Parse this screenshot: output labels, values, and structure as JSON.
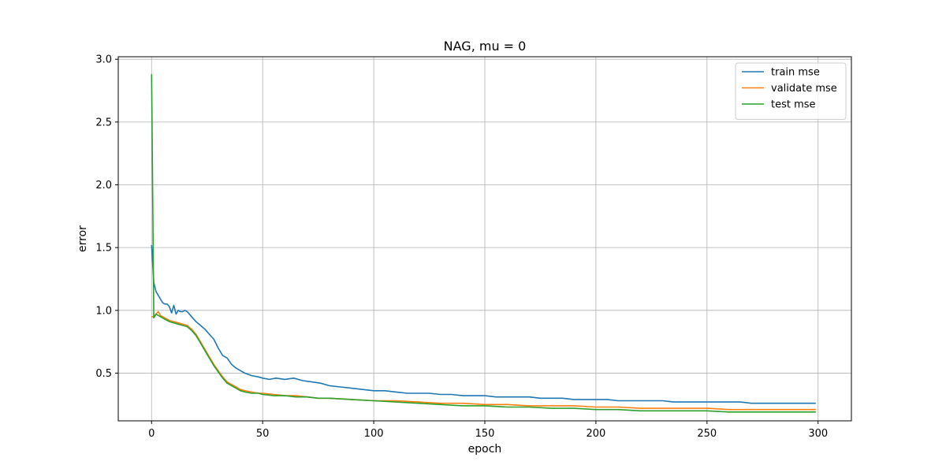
{
  "chart_data": {
    "type": "line",
    "title": "NAG, mu = 0",
    "xlabel": "epoch",
    "ylabel": "error",
    "xlim": [
      -15,
      315
    ],
    "ylim": [
      0.12,
      3.02
    ],
    "xticks": [
      0,
      50,
      100,
      150,
      200,
      250,
      300
    ],
    "xtick_labels": [
      "0",
      "50",
      "100",
      "150",
      "200",
      "250",
      "300"
    ],
    "yticks": [
      0.5,
      1.0,
      1.5,
      2.0,
      2.5,
      3.0
    ],
    "ytick_labels": [
      "0.5",
      "1.0",
      "1.5",
      "2.0",
      "2.5",
      "3.0"
    ],
    "grid": true,
    "legend_position": "upper right",
    "series": [
      {
        "name": "train mse",
        "color": "#1f77b4",
        "points": [
          [
            0,
            1.52
          ],
          [
            1,
            1.22
          ],
          [
            2,
            1.15
          ],
          [
            3,
            1.12
          ],
          [
            4,
            1.09
          ],
          [
            5,
            1.06
          ],
          [
            6,
            1.05
          ],
          [
            7,
            1.05
          ],
          [
            8,
            1.03
          ],
          [
            9,
            0.98
          ],
          [
            10,
            1.04
          ],
          [
            11,
            0.97
          ],
          [
            12,
            1.0
          ],
          [
            13,
            0.99
          ],
          [
            14,
            0.99
          ],
          [
            15,
            1.0
          ],
          [
            16,
            0.99
          ],
          [
            18,
            0.95
          ],
          [
            20,
            0.91
          ],
          [
            22,
            0.88
          ],
          [
            24,
            0.85
          ],
          [
            26,
            0.81
          ],
          [
            28,
            0.77
          ],
          [
            30,
            0.7
          ],
          [
            32,
            0.64
          ],
          [
            34,
            0.62
          ],
          [
            36,
            0.57
          ],
          [
            38,
            0.54
          ],
          [
            40,
            0.52
          ],
          [
            42,
            0.5
          ],
          [
            45,
            0.48
          ],
          [
            48,
            0.47
          ],
          [
            50,
            0.46
          ],
          [
            53,
            0.45
          ],
          [
            56,
            0.46
          ],
          [
            60,
            0.45
          ],
          [
            64,
            0.46
          ],
          [
            68,
            0.44
          ],
          [
            72,
            0.43
          ],
          [
            76,
            0.42
          ],
          [
            80,
            0.4
          ],
          [
            85,
            0.39
          ],
          [
            90,
            0.38
          ],
          [
            95,
            0.37
          ],
          [
            100,
            0.36
          ],
          [
            105,
            0.36
          ],
          [
            110,
            0.35
          ],
          [
            115,
            0.34
          ],
          [
            120,
            0.34
          ],
          [
            125,
            0.34
          ],
          [
            130,
            0.33
          ],
          [
            135,
            0.33
          ],
          [
            140,
            0.32
          ],
          [
            145,
            0.32
          ],
          [
            150,
            0.32
          ],
          [
            155,
            0.31
          ],
          [
            160,
            0.31
          ],
          [
            165,
            0.31
          ],
          [
            170,
            0.31
          ],
          [
            175,
            0.3
          ],
          [
            180,
            0.3
          ],
          [
            185,
            0.3
          ],
          [
            190,
            0.29
          ],
          [
            195,
            0.29
          ],
          [
            200,
            0.29
          ],
          [
            205,
            0.29
          ],
          [
            210,
            0.28
          ],
          [
            215,
            0.28
          ],
          [
            220,
            0.28
          ],
          [
            225,
            0.28
          ],
          [
            230,
            0.28
          ],
          [
            235,
            0.27
          ],
          [
            240,
            0.27
          ],
          [
            245,
            0.27
          ],
          [
            250,
            0.27
          ],
          [
            255,
            0.27
          ],
          [
            260,
            0.27
          ],
          [
            265,
            0.27
          ],
          [
            270,
            0.26
          ],
          [
            275,
            0.26
          ],
          [
            280,
            0.26
          ],
          [
            285,
            0.26
          ],
          [
            290,
            0.26
          ],
          [
            295,
            0.26
          ],
          [
            299,
            0.26
          ]
        ]
      },
      {
        "name": "validate mse",
        "color": "#ff7f0e",
        "points": [
          [
            0,
            0.95
          ],
          [
            1,
            0.95
          ],
          [
            2,
            0.97
          ],
          [
            3,
            0.99
          ],
          [
            4,
            0.96
          ],
          [
            6,
            0.94
          ],
          [
            8,
            0.92
          ],
          [
            10,
            0.91
          ],
          [
            12,
            0.9
          ],
          [
            14,
            0.89
          ],
          [
            16,
            0.88
          ],
          [
            18,
            0.85
          ],
          [
            20,
            0.81
          ],
          [
            22,
            0.75
          ],
          [
            24,
            0.69
          ],
          [
            26,
            0.63
          ],
          [
            28,
            0.57
          ],
          [
            30,
            0.52
          ],
          [
            32,
            0.47
          ],
          [
            34,
            0.43
          ],
          [
            36,
            0.41
          ],
          [
            38,
            0.39
          ],
          [
            40,
            0.37
          ],
          [
            42,
            0.36
          ],
          [
            45,
            0.35
          ],
          [
            48,
            0.34
          ],
          [
            50,
            0.34
          ],
          [
            55,
            0.33
          ],
          [
            60,
            0.32
          ],
          [
            65,
            0.32
          ],
          [
            70,
            0.31
          ],
          [
            75,
            0.3
          ],
          [
            80,
            0.3
          ],
          [
            90,
            0.29
          ],
          [
            100,
            0.28
          ],
          [
            110,
            0.28
          ],
          [
            120,
            0.27
          ],
          [
            130,
            0.26
          ],
          [
            140,
            0.26
          ],
          [
            150,
            0.25
          ],
          [
            160,
            0.25
          ],
          [
            170,
            0.24
          ],
          [
            180,
            0.24
          ],
          [
            190,
            0.24
          ],
          [
            200,
            0.23
          ],
          [
            210,
            0.23
          ],
          [
            220,
            0.22
          ],
          [
            230,
            0.22
          ],
          [
            240,
            0.22
          ],
          [
            250,
            0.22
          ],
          [
            260,
            0.21
          ],
          [
            270,
            0.21
          ],
          [
            280,
            0.21
          ],
          [
            290,
            0.21
          ],
          [
            299,
            0.21
          ]
        ]
      },
      {
        "name": "test mse",
        "color": "#2ca02c",
        "points": [
          [
            0,
            2.88
          ],
          [
            1,
            0.94
          ],
          [
            2,
            0.97
          ],
          [
            3,
            0.96
          ],
          [
            4,
            0.95
          ],
          [
            6,
            0.93
          ],
          [
            8,
            0.91
          ],
          [
            10,
            0.9
          ],
          [
            12,
            0.89
          ],
          [
            14,
            0.88
          ],
          [
            16,
            0.87
          ],
          [
            18,
            0.84
          ],
          [
            20,
            0.8
          ],
          [
            22,
            0.74
          ],
          [
            24,
            0.68
          ],
          [
            26,
            0.62
          ],
          [
            28,
            0.56
          ],
          [
            30,
            0.51
          ],
          [
            32,
            0.46
          ],
          [
            34,
            0.42
          ],
          [
            36,
            0.4
          ],
          [
            38,
            0.38
          ],
          [
            40,
            0.36
          ],
          [
            42,
            0.35
          ],
          [
            45,
            0.34
          ],
          [
            48,
            0.34
          ],
          [
            50,
            0.33
          ],
          [
            55,
            0.32
          ],
          [
            60,
            0.32
          ],
          [
            65,
            0.31
          ],
          [
            70,
            0.31
          ],
          [
            75,
            0.3
          ],
          [
            80,
            0.3
          ],
          [
            90,
            0.29
          ],
          [
            100,
            0.28
          ],
          [
            110,
            0.27
          ],
          [
            120,
            0.26
          ],
          [
            130,
            0.25
          ],
          [
            140,
            0.24
          ],
          [
            150,
            0.24
          ],
          [
            160,
            0.23
          ],
          [
            170,
            0.23
          ],
          [
            180,
            0.22
          ],
          [
            190,
            0.22
          ],
          [
            200,
            0.21
          ],
          [
            210,
            0.21
          ],
          [
            220,
            0.2
          ],
          [
            230,
            0.2
          ],
          [
            240,
            0.2
          ],
          [
            250,
            0.2
          ],
          [
            260,
            0.19
          ],
          [
            270,
            0.19
          ],
          [
            280,
            0.19
          ],
          [
            290,
            0.19
          ],
          [
            299,
            0.19
          ]
        ]
      }
    ]
  }
}
